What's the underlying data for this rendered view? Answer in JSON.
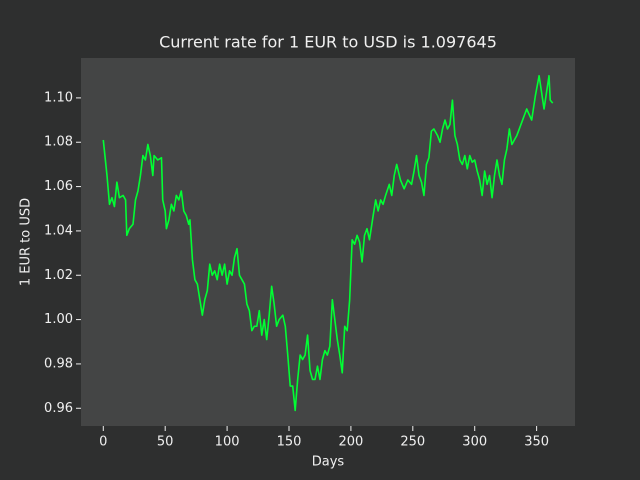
{
  "chart_data": {
    "type": "line",
    "title": "Current rate for 1 EUR to USD is 1.097645",
    "x_label": "Days",
    "y_label": "1 EUR to USD",
    "color": "#00ff33",
    "x": [
      0,
      3,
      5,
      7,
      9,
      11,
      13,
      16,
      18,
      19,
      21,
      24,
      26,
      28,
      30,
      32,
      34,
      36,
      38,
      40,
      41,
      44,
      47,
      48,
      50,
      51,
      53,
      55,
      57,
      59,
      61,
      63,
      65,
      67,
      69,
      70,
      72,
      74,
      76,
      78,
      80,
      82,
      84,
      86,
      88,
      90,
      92,
      94,
      96,
      98,
      100,
      102,
      104,
      106,
      108,
      110,
      112,
      114,
      116,
      118,
      120,
      122,
      124,
      126,
      128,
      130,
      132,
      134,
      136,
      138,
      140,
      142,
      145,
      147,
      149,
      151,
      153,
      155,
      157,
      159,
      161,
      163,
      165,
      167,
      169,
      171,
      173,
      175,
      177,
      179,
      181,
      183,
      185,
      187,
      189,
      191,
      193,
      195,
      197,
      199,
      201,
      203,
      205,
      207,
      209,
      211,
      213,
      215,
      218,
      220,
      222,
      224,
      226,
      228,
      231,
      233,
      235,
      237,
      240,
      243,
      246,
      249,
      251,
      253,
      255,
      257,
      259,
      261,
      263,
      265,
      267,
      270,
      272,
      274,
      276,
      278,
      280,
      282,
      284,
      286,
      288,
      290,
      292,
      294,
      296,
      298,
      300,
      302,
      304,
      306,
      308,
      310,
      312,
      314,
      316,
      318,
      320,
      322,
      324,
      326,
      328,
      330,
      332,
      334,
      336,
      342,
      346,
      349,
      352,
      356,
      360,
      361,
      363
    ],
    "values": [
      1.081,
      1.065,
      1.052,
      1.055,
      1.051,
      1.062,
      1.055,
      1.056,
      1.054,
      1.038,
      1.041,
      1.043,
      1.054,
      1.058,
      1.065,
      1.074,
      1.072,
      1.079,
      1.074,
      1.065,
      1.074,
      1.072,
      1.073,
      1.054,
      1.049,
      1.041,
      1.045,
      1.052,
      1.049,
      1.056,
      1.054,
      1.058,
      1.049,
      1.047,
      1.043,
      1.045,
      1.027,
      1.018,
      1.016,
      1.009,
      1.002,
      1.009,
      1.013,
      1.025,
      1.02,
      1.022,
      1.018,
      1.025,
      1.02,
      1.025,
      1.016,
      1.022,
      1.02,
      1.028,
      1.032,
      1.02,
      1.018,
      1.016,
      1.007,
      1.004,
      0.995,
      0.997,
      0.997,
      1.004,
      0.993,
      1.0,
      0.991,
      1.002,
      1.015,
      1.007,
      0.997,
      1.0,
      1.002,
      0.997,
      0.984,
      0.97,
      0.97,
      0.959,
      0.973,
      0.984,
      0.982,
      0.984,
      0.993,
      0.977,
      0.973,
      0.973,
      0.979,
      0.973,
      0.982,
      0.986,
      0.984,
      0.988,
      1.009,
      1.0,
      0.991,
      0.984,
      0.976,
      0.997,
      0.995,
      1.009,
      1.036,
      1.034,
      1.038,
      1.035,
      1.026,
      1.038,
      1.041,
      1.036,
      1.047,
      1.054,
      1.049,
      1.054,
      1.052,
      1.056,
      1.061,
      1.056,
      1.065,
      1.07,
      1.063,
      1.059,
      1.063,
      1.061,
      1.067,
      1.074,
      1.065,
      1.062,
      1.056,
      1.07,
      1.073,
      1.085,
      1.086,
      1.083,
      1.08,
      1.086,
      1.09,
      1.086,
      1.088,
      1.099,
      1.083,
      1.079,
      1.072,
      1.07,
      1.074,
      1.068,
      1.074,
      1.071,
      1.072,
      1.067,
      1.063,
      1.056,
      1.067,
      1.061,
      1.065,
      1.055,
      1.065,
      1.072,
      1.065,
      1.061,
      1.072,
      1.077,
      1.086,
      1.079,
      1.081,
      1.083,
      1.086,
      1.095,
      1.09,
      1.101,
      1.11,
      1.095,
      1.11,
      1.099,
      1.097645
    ],
    "xlim": [
      -18,
      381
    ],
    "ylim": [
      0.952,
      1.118
    ],
    "xticks": [
      0,
      50,
      100,
      150,
      200,
      250,
      300,
      350
    ],
    "yticks": [
      0.96,
      0.98,
      {
        "value": 1,
        "label": "1.00"
      },
      1.02,
      1.04,
      1.06,
      1.08,
      {
        "value": 1.1,
        "label": "1.10"
      }
    ]
  }
}
